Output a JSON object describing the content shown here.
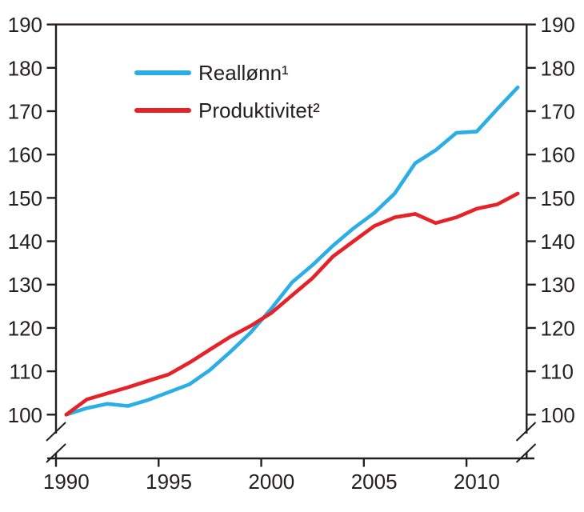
{
  "chart_data": {
    "type": "line",
    "title": "",
    "xlabel": "",
    "ylabel": "",
    "x": [
      1990,
      1991,
      1992,
      1993,
      1994,
      1995,
      1996,
      1997,
      1998,
      1999,
      2000,
      2001,
      2002,
      2003,
      2004,
      2005,
      2006,
      2007,
      2008,
      2009,
      2010,
      2011,
      2012
    ],
    "series": [
      {
        "name": "Reallønn¹",
        "color": "#2BADE5",
        "values": [
          100,
          101.5,
          102.5,
          102,
          103.4,
          105.2,
          107,
          110.3,
          114.5,
          119,
          124.5,
          130.5,
          134.5,
          139,
          143,
          146.5,
          151,
          158,
          161,
          165,
          165.3,
          170.5,
          175.5
        ]
      },
      {
        "name": "Produktivitet²",
        "color": "#E62128",
        "values": [
          100,
          103.5,
          104.9,
          106.3,
          107.8,
          109.3,
          112,
          115,
          118,
          120.5,
          123.5,
          127.5,
          131.5,
          136.5,
          140,
          143.5,
          145.5,
          146.3,
          144.2,
          145.5,
          147.5,
          148.5,
          151
        ]
      }
    ],
    "ylim": [
      100,
      190
    ],
    "yticks": [
      100,
      110,
      120,
      130,
      140,
      150,
      160,
      170,
      180,
      190
    ],
    "xticks": [
      1990,
      1995,
      2000,
      2005,
      2010
    ],
    "index_base": "1990=100",
    "axis_break": true,
    "grid": false,
    "legend_position": "inside-top-left",
    "axis_color": "#231f20"
  },
  "legend": {
    "items": [
      {
        "label": "Reallønn¹"
      },
      {
        "label": "Produktivitet²"
      }
    ]
  }
}
